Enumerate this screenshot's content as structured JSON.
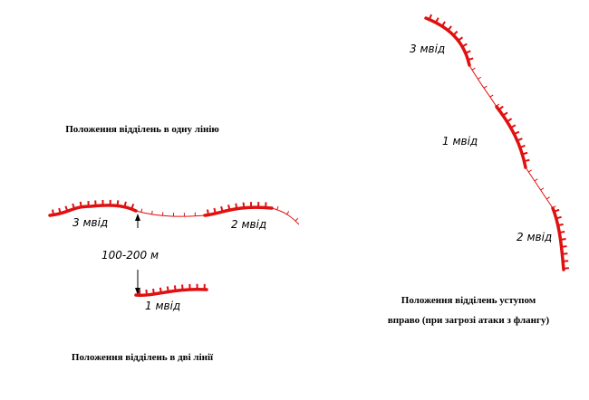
{
  "captions": {
    "one_line": "Положення відділень в одну лінію",
    "two_lines": "Положення відділень в дві лінії",
    "echelon": [
      "Положення відділень уступом",
      "вправо (при загрозі атаки з флангу)"
    ]
  },
  "left_diagram": {
    "labels": [
      "3 мвід",
      "2 мвід",
      "100-200 м",
      "1 мвід"
    ]
  },
  "right_diagram": {
    "labels": [
      "3 мвід",
      "1 мвід",
      "2 мвід"
    ]
  }
}
